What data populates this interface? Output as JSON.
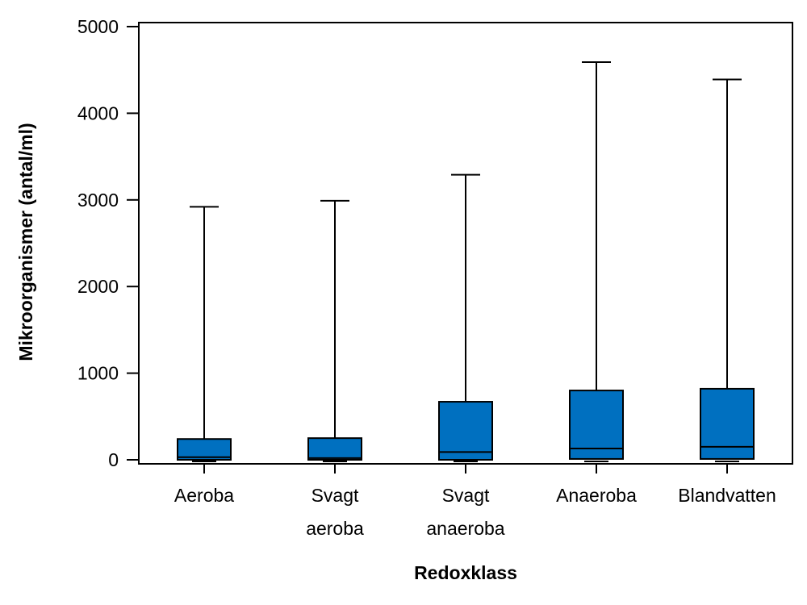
{
  "chart_data": {
    "type": "box",
    "xlabel": "Redoxklass",
    "ylabel": "Mikroorganismer (antal/ml)",
    "ylim": [
      -50,
      5080
    ],
    "yticks": [
      0,
      1000,
      2000,
      3000,
      4000,
      5000
    ],
    "grid": false,
    "legend": "none",
    "box_color": "#0070C0",
    "categories": [
      {
        "label": [
          "Aeroba"
        ],
        "min": 0,
        "q1": 0,
        "median": 30,
        "q3": 240,
        "max": 2920
      },
      {
        "label": [
          "Svagt",
          "aeroba"
        ],
        "min": 0,
        "q1": 0,
        "median": 20,
        "q3": 250,
        "max": 2990
      },
      {
        "label": [
          "Svagt",
          "anaeroba"
        ],
        "min": 0,
        "q1": 0,
        "median": 90,
        "q3": 670,
        "max": 3290
      },
      {
        "label": [
          "Anaeroba"
        ],
        "min": 0,
        "q1": 10,
        "median": 130,
        "q3": 800,
        "max": 4590
      },
      {
        "label": [
          "Blandvatten"
        ],
        "min": 0,
        "q1": 10,
        "median": 150,
        "q3": 820,
        "max": 4390
      }
    ]
  }
}
